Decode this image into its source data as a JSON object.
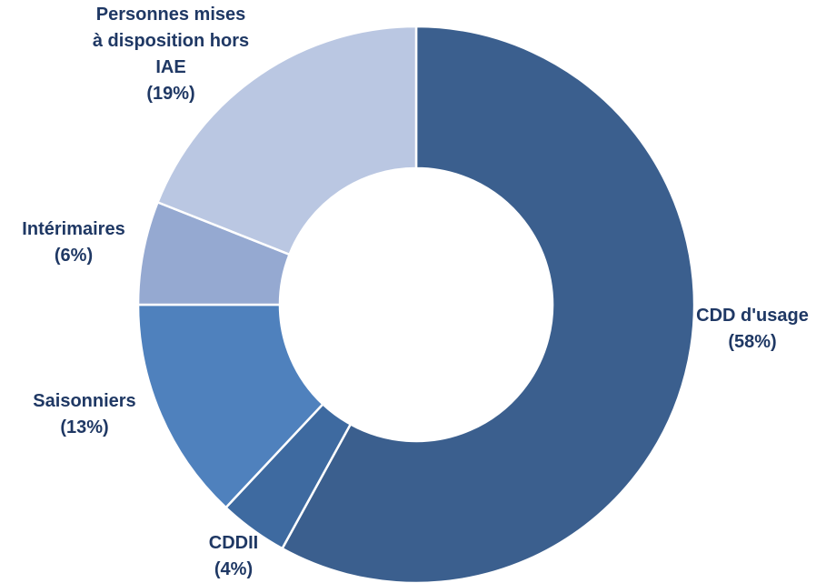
{
  "chart_data": {
    "type": "donut",
    "title": "",
    "legend": "none",
    "label_color": "#1F3864",
    "slices": [
      {
        "name": "CDD d'usage",
        "value": 58,
        "label_lines": [
          "CDD d'usage",
          "(58%)"
        ],
        "color": "#3B5F8E"
      },
      {
        "name": "CDDII",
        "value": 4,
        "label_lines": [
          "CDDII",
          "(4%)"
        ],
        "color": "#3E6AA0"
      },
      {
        "name": "Saisonniers",
        "value": 13,
        "label_lines": [
          "Saisonniers",
          "(13%)"
        ],
        "color": "#4F81BD"
      },
      {
        "name": "Intérimaires",
        "value": 6,
        "label_lines": [
          "Intérimaires",
          "(6%)"
        ],
        "color": "#95A9D1"
      },
      {
        "name": "Personnes mises à disposition hors IAE",
        "value": 19,
        "label_lines": [
          "Personnes mises",
          "à disposition hors",
          "IAE",
          "(19%)"
        ],
        "color": "#BAC7E2"
      }
    ]
  }
}
